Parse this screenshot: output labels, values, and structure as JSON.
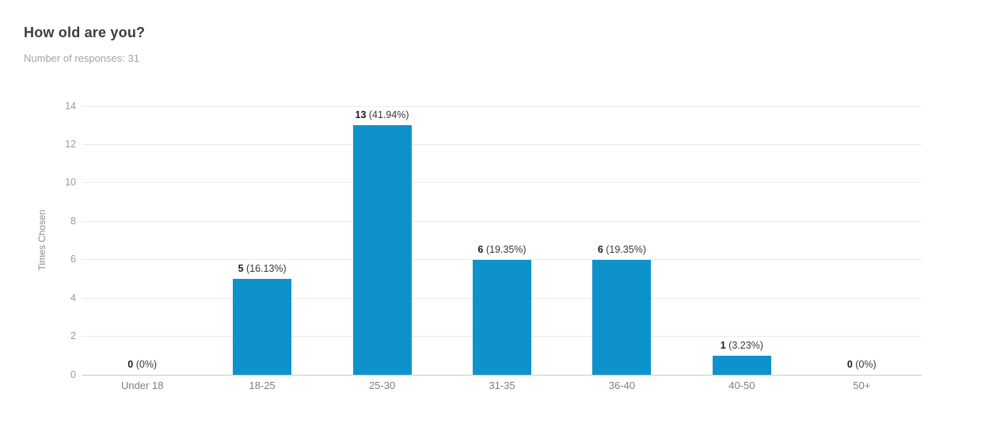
{
  "header": {
    "title": "How old are you?",
    "subtitle": "Number of responses: 31"
  },
  "chart_data": {
    "type": "bar",
    "title": "How old are you?",
    "subtitle": "Number of responses: 31",
    "total_responses": 31,
    "categories": [
      "Under 18",
      "18-25",
      "25-30",
      "31-35",
      "36-40",
      "40-50",
      "50+"
    ],
    "values": [
      0,
      5,
      13,
      6,
      6,
      1,
      0
    ],
    "percent_labels": [
      "(0%)",
      "(16.13%)",
      "(41.94%)",
      "(19.35%)",
      "(19.35%)",
      "(3.23%)",
      "(0%)"
    ],
    "xlabel": "",
    "ylabel": "Times Chosen",
    "ylim": [
      0,
      14
    ],
    "ytick_step": 2,
    "grid": true,
    "legend": "none",
    "bar_color": "#0e92cc",
    "gridline_color": "#ebebeb",
    "baseline_color": "#c9c9c9"
  }
}
